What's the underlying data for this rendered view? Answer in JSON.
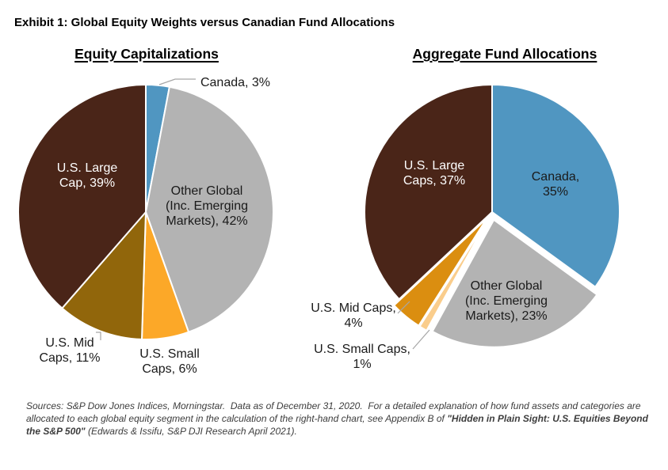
{
  "page": {
    "title": "Exhibit 1: Global Equity Weights versus Canadian Fund Allocations"
  },
  "footer": {
    "text_regular_1": "Sources: S&P Dow Jones Indices, Morningstar.  Data as of December 31, 2020.  For a detailed explanation of how fund assets and categories are allocated to each global equity segment in the calculation of the right-hand chart, see Appendix B of ",
    "text_bold": "\"Hidden in Plain Sight: U.S. Equities Beyond the S&P 500\"",
    "text_regular_2": " (Edwards & Issifu, S&P DJI Research April 2021)."
  },
  "chart_data": [
    {
      "type": "pie",
      "title": "Equity Capitalizations",
      "start_angle_deg": 0,
      "direction": "clockwise",
      "slices": [
        {
          "label": "Canada",
          "value": 3,
          "display": "Canada, 3%",
          "label_lines": [
            "Canada, 3%"
          ],
          "color": "#5096C1",
          "text_color": "#1A1A1A",
          "label_placement": "outside"
        },
        {
          "label": "Other Global (Inc. Emerging Markets)",
          "value": 42,
          "display": "Other Global (Inc. Emerging Markets), 42%",
          "label_lines": [
            "Other Global",
            "(Inc. Emerging",
            "Markets), 42%"
          ],
          "color": "#B3B3B3",
          "text_color": "#1A1A1A",
          "label_placement": "inside"
        },
        {
          "label": "U.S. Small Caps",
          "value": 6,
          "display": "U.S. Small Caps, 6%",
          "label_lines": [
            "U.S. Small",
            "Caps, 6%"
          ],
          "color": "#FCA828",
          "text_color": "#1A1A1A",
          "label_placement": "outside"
        },
        {
          "label": "U.S. Mid Caps",
          "value": 11,
          "display": "U.S. Mid Caps, 11%",
          "label_lines": [
            "U.S. Mid",
            "Caps, 11%"
          ],
          "color": "#91660B",
          "text_color": "#1A1A1A",
          "label_placement": "outside"
        },
        {
          "label": "U.S. Large Cap",
          "value": 39,
          "display": "U.S. Large Cap, 39%",
          "label_lines": [
            "U.S. Large",
            "Cap, 39%"
          ],
          "color": "#4A2518",
          "text_color": "#FFFFFF",
          "label_placement": "inside"
        }
      ]
    },
    {
      "type": "pie",
      "title": "Aggregate Fund Allocations",
      "start_angle_deg": 0,
      "direction": "clockwise",
      "slices": [
        {
          "label": "Canada",
          "value": 35,
          "display": "Canada, 35%",
          "label_lines": [
            "Canada,",
            "35%"
          ],
          "color": "#5096C1",
          "text_color": "#1A1A1A",
          "label_placement": "inside"
        },
        {
          "label": "Other Global (Inc. Emerging Markets)",
          "value": 23,
          "display": "Other Global (Inc. Emerging Markets), 23%",
          "label_lines": [
            "Other Global",
            "(Inc. Emerging",
            "Markets), 23%"
          ],
          "color": "#B3B3B3",
          "text_color": "#1A1A1A",
          "label_placement": "inside"
        },
        {
          "label": "U.S. Small Caps",
          "value": 1,
          "display": "U.S. Small Caps, 1%",
          "label_lines": [
            "U.S. Small Caps,",
            "1%"
          ],
          "color": "#FACD8C",
          "text_color": "#1A1A1A",
          "label_placement": "outside"
        },
        {
          "label": "U.S. Mid Caps",
          "value": 4,
          "display": "U.S. Mid Caps, 4%",
          "label_lines": [
            "U.S. Mid Caps,",
            "4%"
          ],
          "color": "#DB8E10",
          "text_color": "#1A1A1A",
          "label_placement": "outside"
        },
        {
          "label": "U.S. Large Caps",
          "value": 37,
          "display": "U.S. Large Caps, 37%",
          "label_lines": [
            "U.S. Large",
            "Caps, 37%"
          ],
          "color": "#4A2518",
          "text_color": "#FFFFFF",
          "label_placement": "inside"
        }
      ]
    }
  ]
}
